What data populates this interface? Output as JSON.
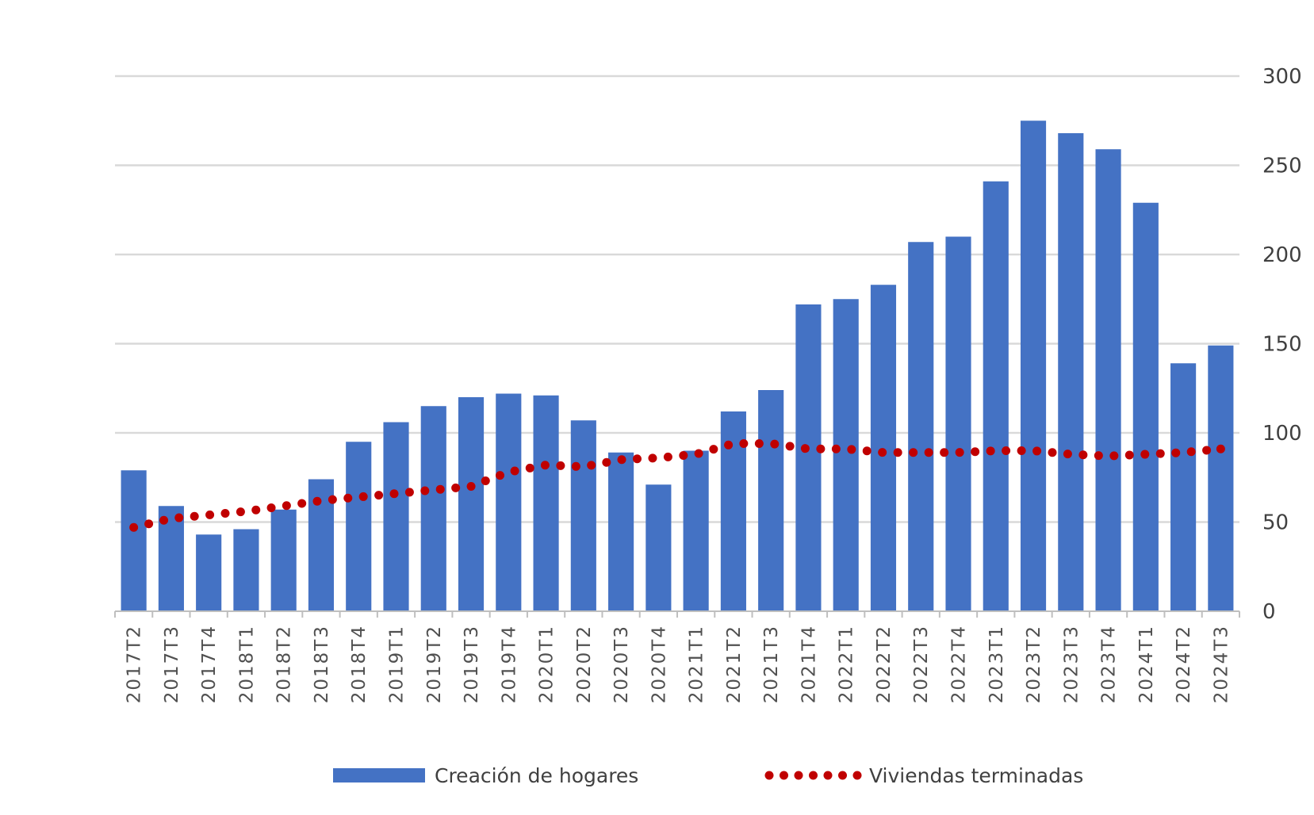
{
  "chart_data": {
    "type": "bar",
    "categories": [
      "2017T2",
      "2017T3",
      "2017T4",
      "2018T1",
      "2018T2",
      "2018T3",
      "2018T4",
      "2019T1",
      "2019T2",
      "2019T3",
      "2019T4",
      "2020T1",
      "2020T2",
      "2020T3",
      "2020T4",
      "2021T1",
      "2021T2",
      "2021T3",
      "2021T4",
      "2022T1",
      "2022T2",
      "2022T3",
      "2022T4",
      "2023T1",
      "2023T2",
      "2023T3",
      "2023T4",
      "2024T1",
      "2024T2",
      "2024T3"
    ],
    "series": [
      {
        "name": "Creación de hogares",
        "type": "bar",
        "color": "#4472C4",
        "values": [
          79,
          59,
          43,
          46,
          57,
          74,
          95,
          106,
          115,
          120,
          122,
          121,
          107,
          89,
          71,
          90,
          112,
          124,
          172,
          175,
          183,
          207,
          210,
          241,
          275,
          268,
          259,
          229,
          139,
          149
        ]
      },
      {
        "name": "Viviendas terminadas",
        "type": "line",
        "style": "dotted",
        "color": "#C00000",
        "values": [
          47,
          52,
          54,
          56,
          59,
          62,
          64,
          66,
          68,
          70,
          78,
          82,
          81,
          85,
          86,
          88,
          94,
          94,
          91,
          91,
          89,
          89,
          89,
          90,
          90,
          88,
          87,
          88,
          89,
          91
        ]
      }
    ],
    "ylim": [
      0,
      300
    ],
    "yticks": [
      "0",
      "50",
      "100",
      "150",
      "200",
      "250",
      "300"
    ],
    "y_axis_side": "right",
    "grid": true,
    "legend_position": "bottom",
    "title": "",
    "xlabel": "",
    "ylabel": ""
  }
}
